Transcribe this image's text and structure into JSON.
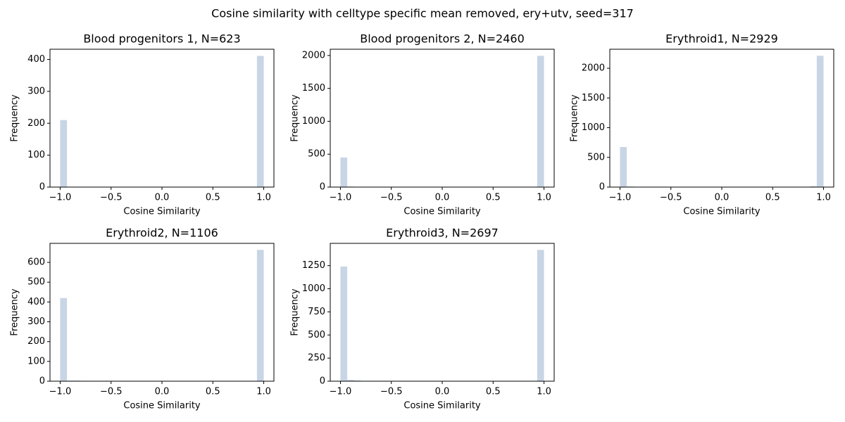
{
  "title": "Cosine similarity with celltype specific mean removed, ery+utv, seed=317",
  "chart_data": [
    {
      "type": "histogram",
      "title": "Blood progenitors 1, N=623",
      "x_label": "Cosine Similarity",
      "y_label": "Frequency",
      "color": "#c8d5e5",
      "bins": [
        -1,
        -0.9333,
        -0.8667,
        -0.8,
        -0.7333,
        -0.6667,
        -0.6,
        -0.5333,
        -0.4667,
        -0.4,
        -0.3333,
        -0.2667,
        -0.2,
        -0.1333,
        -0.0667,
        0,
        0.0667,
        0.1333,
        0.2,
        0.2667,
        0.3333,
        0.4,
        0.4667,
        0.5333,
        0.6,
        0.6667,
        0.7333,
        0.8,
        0.8667,
        0.9333,
        1
      ],
      "values": [
        210,
        0,
        0,
        0,
        0,
        0,
        0,
        0,
        0,
        0,
        0,
        0,
        0,
        0,
        0,
        0,
        0,
        0,
        0,
        0,
        0,
        0,
        0,
        0,
        1,
        0,
        1,
        0,
        0,
        411
      ],
      "xlim": [
        -1.1,
        1.1
      ],
      "xticks": [
        {
          "value": -1,
          "label": "−1.0"
        },
        {
          "value": -0.5,
          "label": "−0.5"
        },
        {
          "value": 0,
          "label": "0.0"
        },
        0.5,
        {
          "value": 1,
          "label": "1.0"
        }
      ],
      "ylim": [
        0,
        432
      ],
      "yticks": [
        0,
        100,
        200,
        300,
        400
      ]
    },
    {
      "type": "histogram",
      "title": "Blood progenitors 2, N=2460",
      "x_label": "Cosine Similarity",
      "y_label": "Frequency",
      "color": "#c8d5e5",
      "bins": [
        -1,
        -0.9333,
        -0.8667,
        -0.8,
        -0.7333,
        -0.6667,
        -0.6,
        -0.5333,
        -0.4667,
        -0.4,
        -0.3333,
        -0.2667,
        -0.2,
        -0.1333,
        -0.0667,
        0,
        0.0667,
        0.1333,
        0.2,
        0.2667,
        0.3333,
        0.4,
        0.4667,
        0.5333,
        0.6,
        0.6667,
        0.7333,
        0.8,
        0.8667,
        0.9333,
        1
      ],
      "values": [
        450,
        8,
        0,
        0,
        0,
        0,
        0,
        0,
        0,
        0,
        0,
        0,
        0,
        0,
        0,
        2,
        0,
        0,
        0,
        0,
        0,
        0,
        0,
        0,
        0,
        0,
        0,
        0,
        5,
        1995
      ],
      "xlim": [
        -1.1,
        1.1
      ],
      "xticks": [
        {
          "value": -1,
          "label": "−1.0"
        },
        {
          "value": -0.5,
          "label": "−0.5"
        },
        {
          "value": 0,
          "label": "0.0"
        },
        0.5,
        {
          "value": 1,
          "label": "1.0"
        }
      ],
      "ylim": [
        0,
        2095
      ],
      "yticks": [
        0,
        500,
        1000,
        1500,
        2000
      ]
    },
    {
      "type": "histogram",
      "title": "Erythroid1, N=2929",
      "x_label": "Cosine Similarity",
      "y_label": "Frequency",
      "color": "#c8d5e5",
      "bins": [
        -1,
        -0.9333,
        -0.8667,
        -0.8,
        -0.7333,
        -0.6667,
        -0.6,
        -0.5333,
        -0.4667,
        -0.4,
        -0.3333,
        -0.2667,
        -0.2,
        -0.1333,
        -0.0667,
        0,
        0.0667,
        0.1333,
        0.2,
        0.2667,
        0.3333,
        0.4,
        0.4667,
        0.5333,
        0.6,
        0.6667,
        0.7333,
        0.8,
        0.8667,
        0.9333,
        1
      ],
      "values": [
        675,
        10,
        5,
        4,
        0,
        0,
        0,
        0,
        0,
        0,
        0,
        0,
        0,
        0,
        0,
        0,
        0,
        0,
        0,
        5,
        3,
        0,
        0,
        0,
        0,
        3,
        0,
        0,
        14,
        2210
      ],
      "xlim": [
        -1.1,
        1.1
      ],
      "xticks": [
        {
          "value": -1,
          "label": "−1.0"
        },
        {
          "value": -0.5,
          "label": "−0.5"
        },
        {
          "value": 0,
          "label": "0.0"
        },
        0.5,
        {
          "value": 1,
          "label": "1.0"
        }
      ],
      "ylim": [
        0,
        2320
      ],
      "yticks": [
        0,
        500,
        1000,
        1500,
        2000
      ]
    },
    {
      "type": "histogram",
      "title": "Erythroid2, N=1106",
      "x_label": "Cosine Similarity",
      "y_label": "Frequency",
      "color": "#c8d5e5",
      "bins": [
        -1,
        -0.9333,
        -0.8667,
        -0.8,
        -0.7333,
        -0.6667,
        -0.6,
        -0.5333,
        -0.4667,
        -0.4,
        -0.3333,
        -0.2667,
        -0.2,
        -0.1333,
        -0.0667,
        0,
        0.0667,
        0.1333,
        0.2,
        0.2667,
        0.3333,
        0.4,
        0.4667,
        0.5333,
        0.6,
        0.6667,
        0.7333,
        0.8,
        0.8667,
        0.9333,
        1
      ],
      "values": [
        420,
        3,
        3,
        2,
        0,
        2,
        2,
        0,
        0,
        0,
        0,
        0,
        1,
        0,
        0,
        2,
        0,
        0,
        0,
        2,
        0,
        0,
        2,
        0,
        0,
        1,
        0,
        2,
        1,
        663
      ],
      "xlim": [
        -1.1,
        1.1
      ],
      "xticks": [
        {
          "value": -1,
          "label": "−1.0"
        },
        {
          "value": -0.5,
          "label": "−0.5"
        },
        {
          "value": 0,
          "label": "0.0"
        },
        0.5,
        {
          "value": 1,
          "label": "1.0"
        }
      ],
      "ylim": [
        0,
        696
      ],
      "yticks": [
        0,
        100,
        200,
        300,
        400,
        500,
        600
      ]
    },
    {
      "type": "histogram",
      "title": "Erythroid3, N=2697",
      "x_label": "Cosine Similarity",
      "y_label": "Frequency",
      "color": "#c8d5e5",
      "bins": [
        -1,
        -0.9333,
        -0.8667,
        -0.8,
        -0.7333,
        -0.6667,
        -0.6,
        -0.5333,
        -0.4667,
        -0.4,
        -0.3333,
        -0.2667,
        -0.2,
        -0.1333,
        -0.0667,
        0,
        0.0667,
        0.1333,
        0.2,
        0.2667,
        0.3333,
        0.4,
        0.4667,
        0.5333,
        0.6,
        0.6667,
        0.7333,
        0.8,
        0.8667,
        0.9333,
        1
      ],
      "values": [
        1240,
        15,
        8,
        0,
        0,
        0,
        0,
        0,
        0,
        0,
        0,
        0,
        2,
        0,
        0,
        3,
        0,
        0,
        2,
        0,
        2,
        0,
        0,
        2,
        0,
        0,
        2,
        0,
        1,
        1420
      ],
      "xlim": [
        -1.1,
        1.1
      ],
      "xticks": [
        {
          "value": -1,
          "label": "−1.0"
        },
        {
          "value": -0.5,
          "label": "−0.5"
        },
        {
          "value": 0,
          "label": "0.0"
        },
        0.5,
        {
          "value": 1,
          "label": "1.0"
        }
      ],
      "ylim": [
        0,
        1491
      ],
      "yticks": [
        0,
        250,
        500,
        750,
        1000,
        1250
      ]
    }
  ]
}
